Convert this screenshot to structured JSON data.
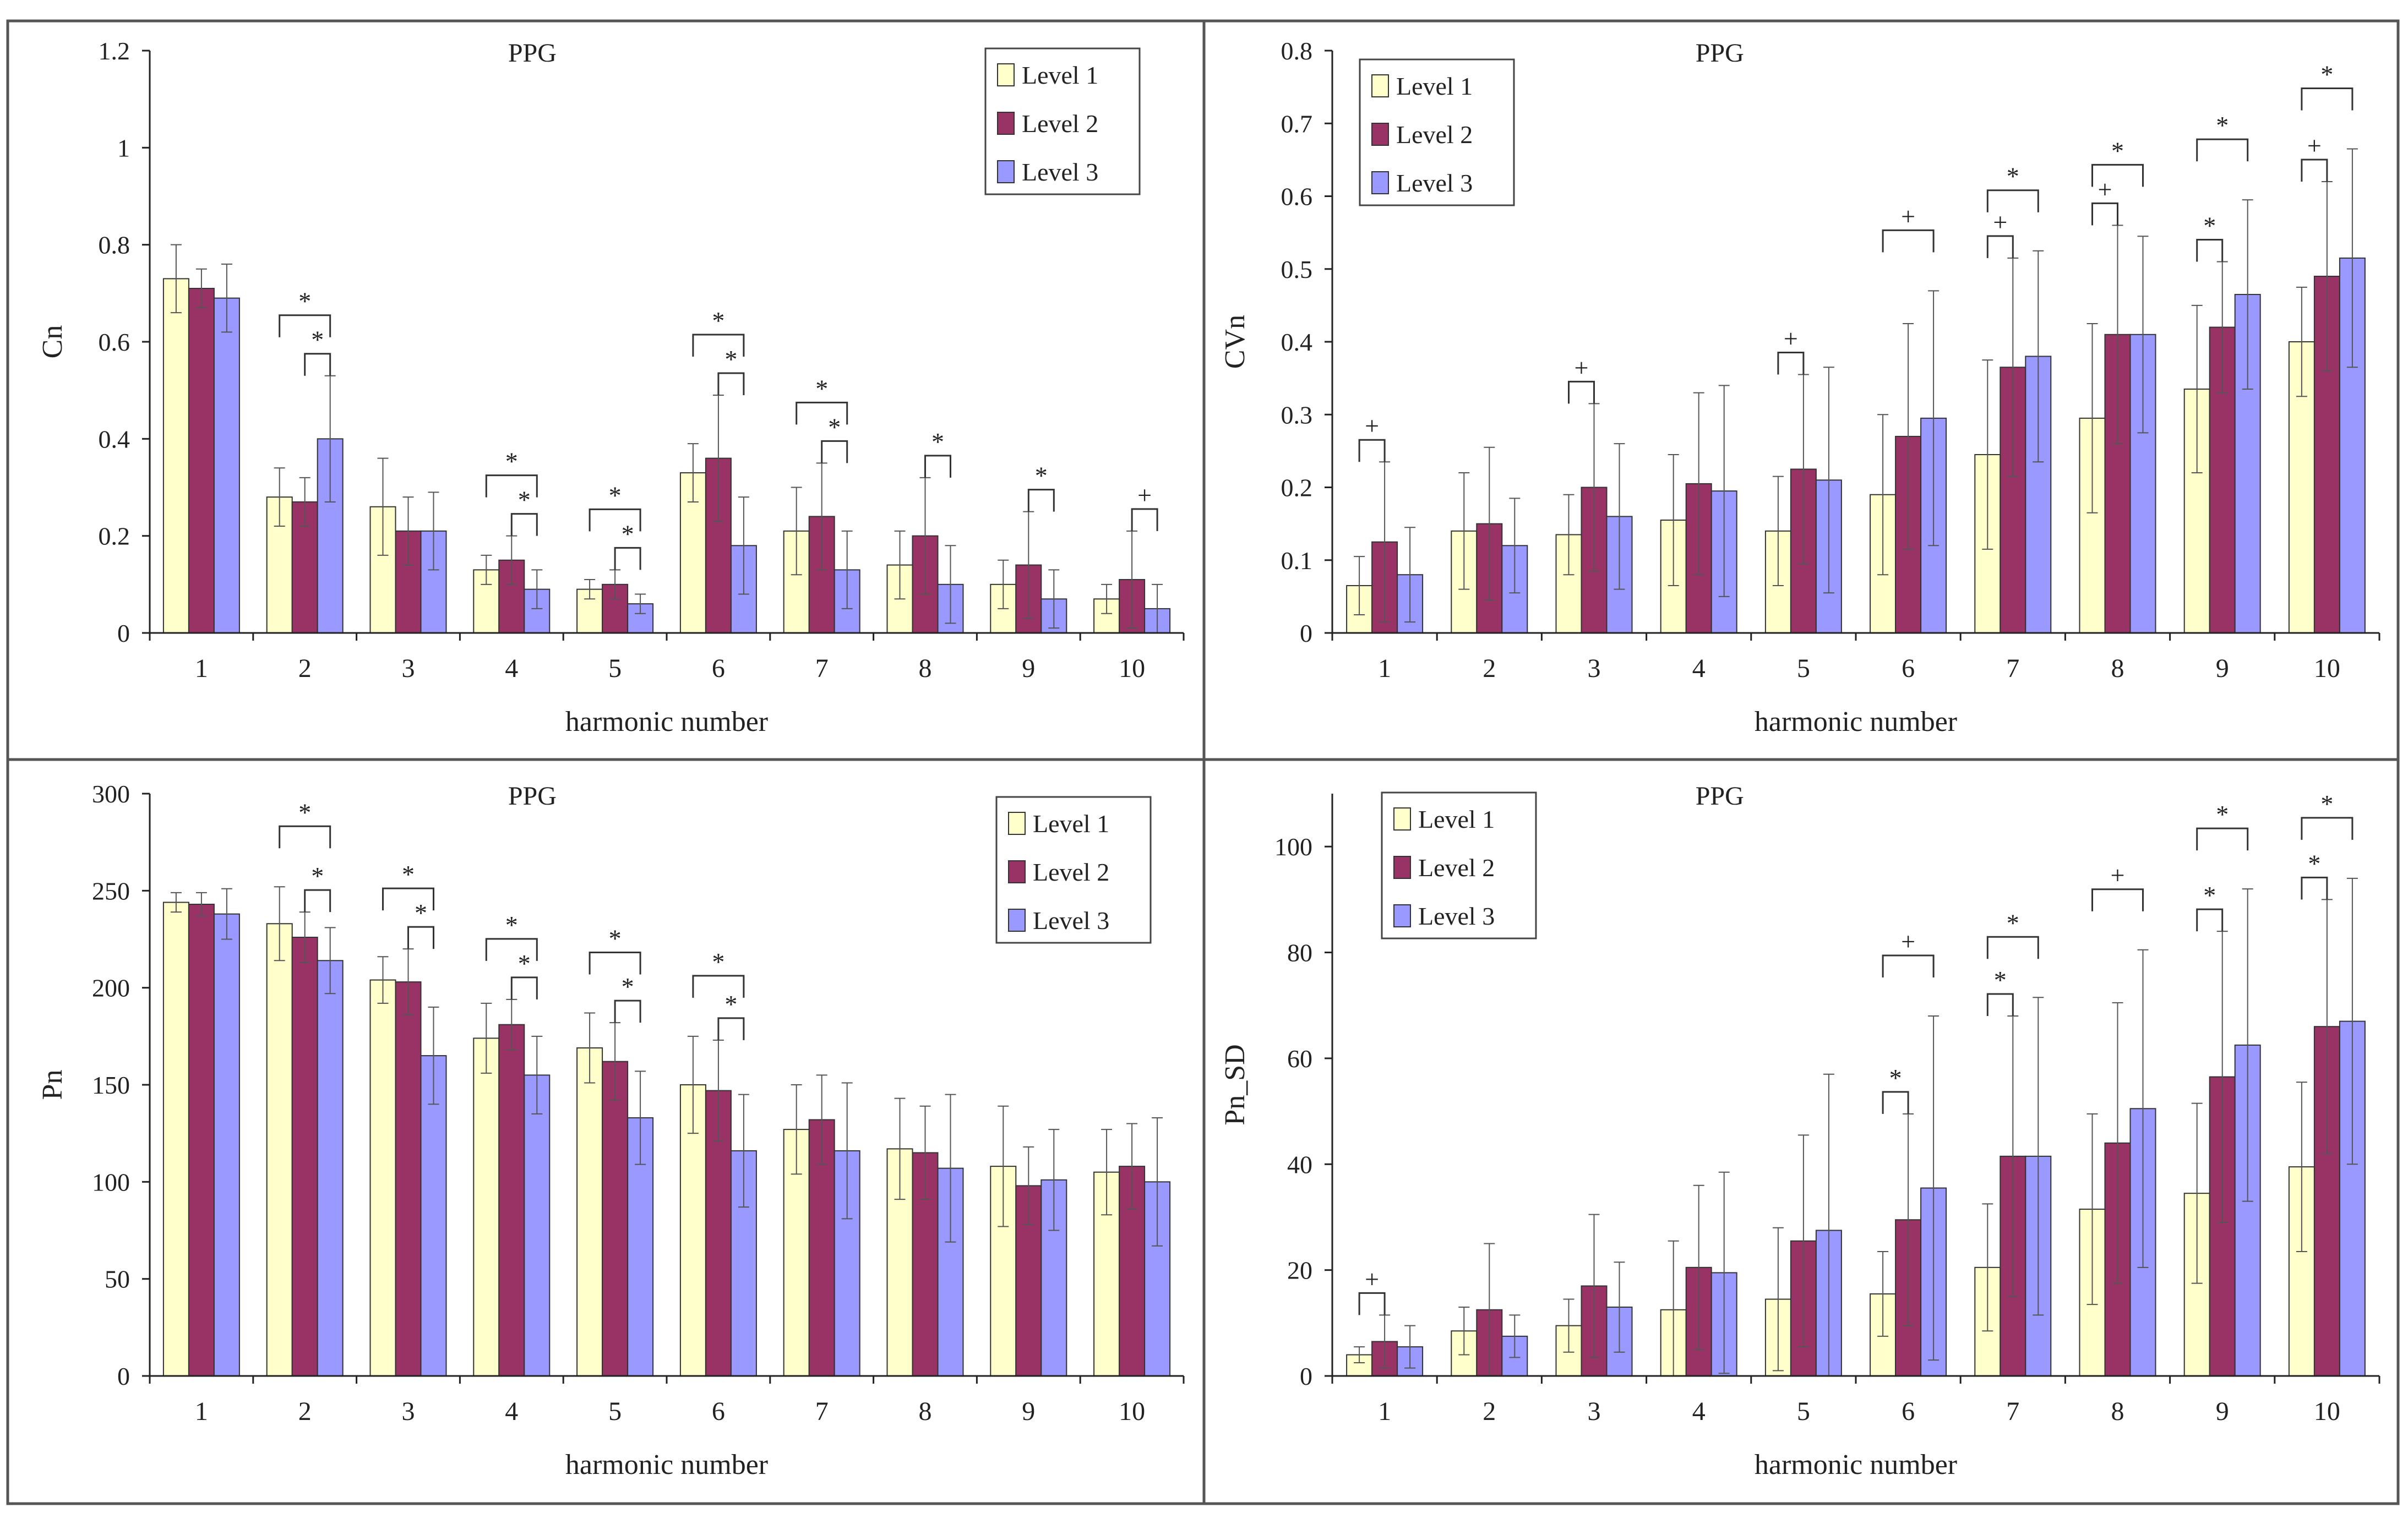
{
  "colors": {
    "level1": "#ffffcc",
    "level2": "#993366",
    "level3": "#9999ff",
    "axis": "#222222",
    "frame": "#555555"
  },
  "chart_data": [
    {
      "type": "bar",
      "title": "PPG",
      "xlabel": "harmonic number",
      "ylabel": "Cn",
      "ylim": [
        0,
        1.2
      ],
      "yticks": [
        "0",
        "0.2",
        "0.4",
        "0.6",
        "0.8",
        "1",
        "1.2"
      ],
      "categories": [
        "1",
        "2",
        "3",
        "4",
        "5",
        "6",
        "7",
        "8",
        "9",
        "10"
      ],
      "legend_position": "top-right",
      "series": [
        {
          "name": "Level 1",
          "values": [
            0.73,
            0.28,
            0.26,
            0.13,
            0.09,
            0.33,
            0.21,
            0.14,
            0.1,
            0.07
          ],
          "errors": [
            0.07,
            0.06,
            0.1,
            0.03,
            0.02,
            0.06,
            0.09,
            0.07,
            0.05,
            0.03
          ]
        },
        {
          "name": "Level 2",
          "values": [
            0.71,
            0.27,
            0.21,
            0.15,
            0.1,
            0.36,
            0.24,
            0.2,
            0.14,
            0.11
          ],
          "errors": [
            0.04,
            0.05,
            0.07,
            0.05,
            0.03,
            0.13,
            0.11,
            0.12,
            0.11,
            0.1
          ]
        },
        {
          "name": "Level 3",
          "values": [
            0.69,
            0.4,
            0.21,
            0.09,
            0.06,
            0.18,
            0.13,
            0.1,
            0.07,
            0.05
          ],
          "errors": [
            0.07,
            0.13,
            0.08,
            0.04,
            0.02,
            0.1,
            0.08,
            0.08,
            0.06,
            0.05
          ]
        }
      ],
      "annotations": [
        {
          "group": 2,
          "from": 1,
          "to": 3,
          "mark": "*"
        },
        {
          "group": 2,
          "from": 2,
          "to": 3,
          "mark": "*"
        },
        {
          "group": 4,
          "from": 1,
          "to": 3,
          "mark": "*"
        },
        {
          "group": 4,
          "from": 2,
          "to": 3,
          "mark": "*"
        },
        {
          "group": 5,
          "from": 1,
          "to": 3,
          "mark": "*"
        },
        {
          "group": 5,
          "from": 2,
          "to": 3,
          "mark": "*"
        },
        {
          "group": 6,
          "from": 1,
          "to": 3,
          "mark": "*"
        },
        {
          "group": 6,
          "from": 2,
          "to": 3,
          "mark": "*"
        },
        {
          "group": 7,
          "from": 1,
          "to": 3,
          "mark": "*"
        },
        {
          "group": 7,
          "from": 2,
          "to": 3,
          "mark": "*"
        },
        {
          "group": 8,
          "from": 2,
          "to": 3,
          "mark": "*"
        },
        {
          "group": 9,
          "from": 2,
          "to": 3,
          "mark": "*"
        },
        {
          "group": 10,
          "from": 2,
          "to": 3,
          "mark": "+"
        }
      ]
    },
    {
      "type": "bar",
      "title": "PPG",
      "xlabel": "harmonic number",
      "ylabel": "CVn",
      "ylim": [
        0,
        0.8
      ],
      "yticks": [
        "0",
        "0.1",
        "0.2",
        "0.3",
        "0.4",
        "0.5",
        "0.6",
        "0.7",
        "0.8"
      ],
      "categories": [
        "1",
        "2",
        "3",
        "4",
        "5",
        "6",
        "7",
        "8",
        "9",
        "10"
      ],
      "legend_position": "top-left",
      "series": [
        {
          "name": "Level 1",
          "values": [
            0.065,
            0.14,
            0.135,
            0.155,
            0.14,
            0.19,
            0.245,
            0.295,
            0.335,
            0.4
          ],
          "errors": [
            0.04,
            0.08,
            0.055,
            0.09,
            0.075,
            0.11,
            0.13,
            0.13,
            0.115,
            0.075
          ]
        },
        {
          "name": "Level 2",
          "values": [
            0.125,
            0.15,
            0.2,
            0.205,
            0.225,
            0.27,
            0.365,
            0.41,
            0.42,
            0.49
          ],
          "errors": [
            0.11,
            0.105,
            0.115,
            0.125,
            0.13,
            0.155,
            0.15,
            0.15,
            0.09,
            0.13
          ]
        },
        {
          "name": "Level 3",
          "values": [
            0.08,
            0.12,
            0.16,
            0.195,
            0.21,
            0.295,
            0.38,
            0.41,
            0.465,
            0.515
          ],
          "errors": [
            0.065,
            0.065,
            0.1,
            0.145,
            0.155,
            0.175,
            0.145,
            0.135,
            0.13,
            0.15
          ]
        }
      ],
      "annotations": [
        {
          "group": 1,
          "from": 1,
          "to": 2,
          "mark": "+"
        },
        {
          "group": 3,
          "from": 1,
          "to": 2,
          "mark": "+"
        },
        {
          "group": 5,
          "from": 1,
          "to": 2,
          "mark": "+"
        },
        {
          "group": 6,
          "from": 1,
          "to": 3,
          "mark": "+"
        },
        {
          "group": 7,
          "from": 1,
          "to": 2,
          "mark": "+"
        },
        {
          "group": 7,
          "from": 1,
          "to": 3,
          "mark": "*"
        },
        {
          "group": 8,
          "from": 1,
          "to": 2,
          "mark": "+"
        },
        {
          "group": 8,
          "from": 1,
          "to": 3,
          "mark": "*"
        },
        {
          "group": 9,
          "from": 1,
          "to": 2,
          "mark": "*"
        },
        {
          "group": 9,
          "from": 1,
          "to": 3,
          "mark": "*"
        },
        {
          "group": 10,
          "from": 1,
          "to": 2,
          "mark": "+"
        },
        {
          "group": 10,
          "from": 1,
          "to": 3,
          "mark": "*"
        }
      ]
    },
    {
      "type": "bar",
      "title": "PPG",
      "xlabel": "harmonic number",
      "ylabel": "Pn",
      "ylim": [
        0,
        300
      ],
      "yticks": [
        "0",
        "50",
        "100",
        "150",
        "200",
        "250",
        "300"
      ],
      "categories": [
        "1",
        "2",
        "3",
        "4",
        "5",
        "6",
        "7",
        "8",
        "9",
        "10"
      ],
      "legend_position": "top-right",
      "series": [
        {
          "name": "Level 1",
          "values": [
            244,
            233,
            204,
            174,
            169,
            150,
            127,
            117,
            108,
            105
          ],
          "errors": [
            5,
            19,
            12,
            18,
            18,
            25,
            23,
            26,
            31,
            22
          ]
        },
        {
          "name": "Level 2",
          "values": [
            243,
            226,
            203,
            181,
            162,
            147,
            132,
            115,
            98,
            108
          ],
          "errors": [
            6,
            13,
            17,
            13,
            20,
            26,
            23,
            24,
            20,
            22
          ]
        },
        {
          "name": "Level 3",
          "values": [
            238,
            214,
            165,
            155,
            133,
            116,
            116,
            107,
            101,
            100
          ],
          "errors": [
            13,
            17,
            25,
            20,
            24,
            29,
            35,
            38,
            26,
            33
          ]
        }
      ],
      "annotations": [
        {
          "group": 2,
          "from": 1,
          "to": 3,
          "mark": "*"
        },
        {
          "group": 2,
          "from": 2,
          "to": 3,
          "mark": "*"
        },
        {
          "group": 3,
          "from": 1,
          "to": 3,
          "mark": "*"
        },
        {
          "group": 3,
          "from": 2,
          "to": 3,
          "mark": "*"
        },
        {
          "group": 4,
          "from": 1,
          "to": 3,
          "mark": "*"
        },
        {
          "group": 4,
          "from": 2,
          "to": 3,
          "mark": "*"
        },
        {
          "group": 5,
          "from": 1,
          "to": 3,
          "mark": "*"
        },
        {
          "group": 5,
          "from": 2,
          "to": 3,
          "mark": "*"
        },
        {
          "group": 6,
          "from": 1,
          "to": 3,
          "mark": "*"
        },
        {
          "group": 6,
          "from": 2,
          "to": 3,
          "mark": "*"
        }
      ]
    },
    {
      "type": "bar",
      "title": "PPG",
      "xlabel": "harmonic number",
      "ylabel": "Pn_SD",
      "ylim": [
        0,
        110
      ],
      "yticks": [
        "0",
        "20",
        "40",
        "60",
        "80",
        "100"
      ],
      "categories": [
        "1",
        "2",
        "3",
        "4",
        "5",
        "6",
        "7",
        "8",
        "9",
        "10"
      ],
      "legend_position": "top-left",
      "series": [
        {
          "name": "Level 1",
          "values": [
            4,
            8.5,
            9.5,
            12.5,
            14.5,
            15.5,
            20.5,
            31.5,
            34.5,
            39.5
          ],
          "errors": [
            1.5,
            4.5,
            5,
            13,
            13.5,
            8,
            12,
            18,
            17,
            16
          ]
        },
        {
          "name": "Level 2",
          "values": [
            6.5,
            12.5,
            17,
            20.5,
            25.5,
            29.5,
            41.5,
            44,
            56.5,
            66
          ],
          "errors": [
            5,
            12.5,
            13.5,
            15.5,
            20,
            20,
            26.5,
            26.5,
            27.5,
            24
          ]
        },
        {
          "name": "Level 3",
          "values": [
            5.5,
            7.5,
            13,
            19.5,
            27.5,
            35.5,
            41.5,
            50.5,
            62.5,
            67
          ],
          "errors": [
            4,
            4,
            8.5,
            19,
            29.5,
            32.5,
            30,
            30,
            29.5,
            27
          ]
        }
      ],
      "annotations": [
        {
          "group": 1,
          "from": 1,
          "to": 2,
          "mark": "+"
        },
        {
          "group": 6,
          "from": 1,
          "to": 2,
          "mark": "*"
        },
        {
          "group": 6,
          "from": 1,
          "to": 3,
          "mark": "+"
        },
        {
          "group": 7,
          "from": 1,
          "to": 2,
          "mark": "*"
        },
        {
          "group": 7,
          "from": 1,
          "to": 3,
          "mark": "*"
        },
        {
          "group": 8,
          "from": 1,
          "to": 3,
          "mark": "+"
        },
        {
          "group": 9,
          "from": 1,
          "to": 2,
          "mark": "*"
        },
        {
          "group": 9,
          "from": 1,
          "to": 3,
          "mark": "*"
        },
        {
          "group": 10,
          "from": 1,
          "to": 2,
          "mark": "*"
        },
        {
          "group": 10,
          "from": 1,
          "to": 3,
          "mark": "*"
        }
      ]
    }
  ]
}
